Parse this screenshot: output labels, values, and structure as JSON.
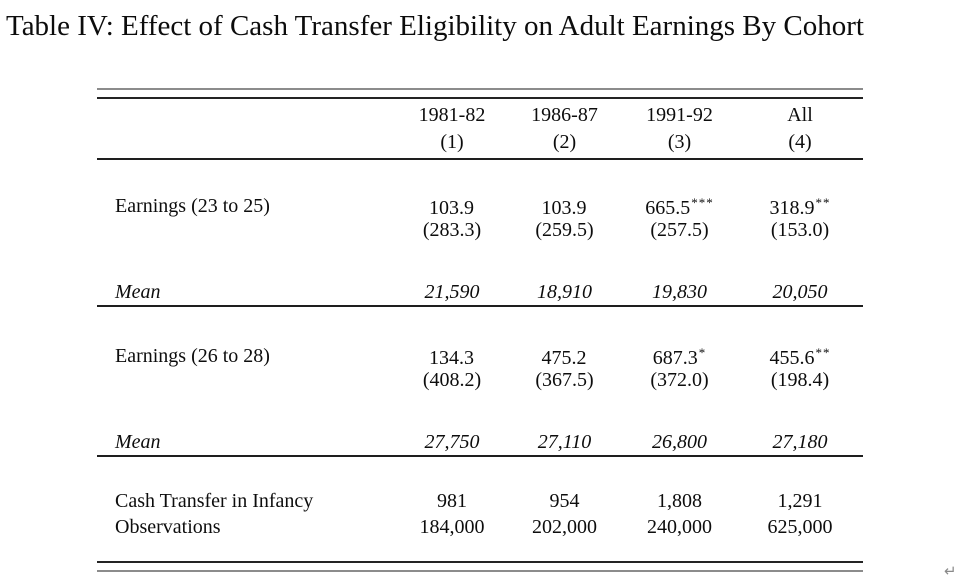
{
  "title": "Table IV: Effect of Cash Transfer Eligibility on Adult Earnings By Cohort",
  "table": {
    "columns": [
      {
        "label": "1981-82",
        "number": "(1)"
      },
      {
        "label": "1986-87",
        "number": "(2)"
      },
      {
        "label": "1991-92",
        "number": "(3)"
      },
      {
        "label": "All",
        "number": "(4)"
      }
    ],
    "rows": {
      "earnings_23_25": {
        "label": "Earnings (23 to 25)",
        "coefs": [
          {
            "value": "103.9",
            "stars": ""
          },
          {
            "value": "103.9",
            "stars": ""
          },
          {
            "value": "665.5",
            "stars": "***"
          },
          {
            "value": "318.9",
            "stars": "**"
          }
        ],
        "ses": [
          "(283.3)",
          "(259.5)",
          "(257.5)",
          "(153.0)"
        ]
      },
      "mean_23_25": {
        "label": "Mean",
        "values": [
          "21,590",
          "18,910",
          "19,830",
          "20,050"
        ]
      },
      "earnings_26_28": {
        "label": "Earnings (26 to 28)",
        "coefs": [
          {
            "value": "134.3",
            "stars": ""
          },
          {
            "value": "475.2",
            "stars": ""
          },
          {
            "value": "687.3",
            "stars": "*"
          },
          {
            "value": "455.6",
            "stars": "**"
          }
        ],
        "ses": [
          "(408.2)",
          "(367.5)",
          "(372.0)",
          "(198.4)"
        ]
      },
      "mean_26_28": {
        "label": "Mean",
        "values": [
          "27,750",
          "27,110",
          "26,800",
          "27,180"
        ]
      },
      "cash_transfer": {
        "label": "Cash Transfer in Infancy",
        "values": [
          "981",
          "954",
          "1,808",
          "1,291"
        ]
      },
      "observations": {
        "label": "Observations",
        "values": [
          "184,000",
          "202,000",
          "240,000",
          "625,000"
        ]
      }
    }
  },
  "footer": {
    "return_mark": "↵"
  }
}
